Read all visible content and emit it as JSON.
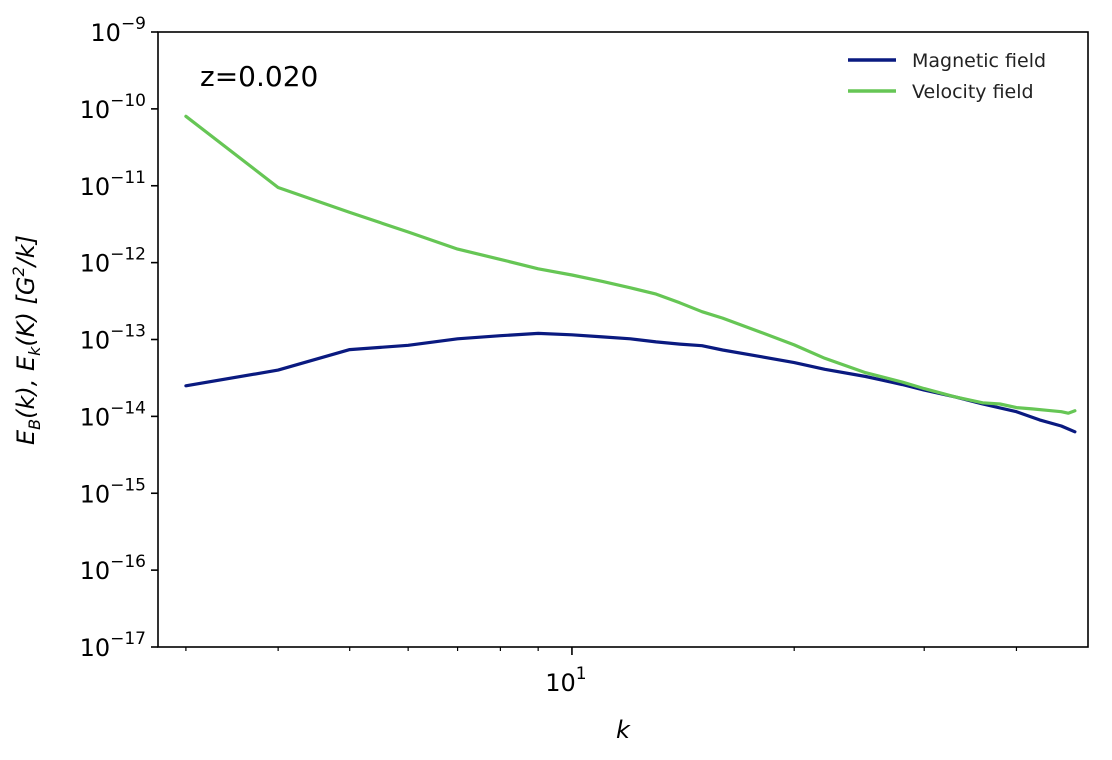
{
  "chart_data": {
    "type": "line",
    "xscale": "log",
    "yscale": "log",
    "xlim": [
      2.75,
      50
    ],
    "ylim": [
      1e-17,
      1e-09
    ],
    "xlabel": "k",
    "ylabel_main": "E",
    "ylabel_sub1": "B",
    "ylabel_mid1": "(k), ",
    "ylabel_sub2": "k",
    "ylabel_mid2": "(K) [G",
    "ylabel_sup": "2",
    "ylabel_end": "/k]",
    "x_ticks_major": [
      {
        "value": 10,
        "base": "10",
        "exp": "1"
      }
    ],
    "x_ticks_minor": [
      3,
      4,
      5,
      6,
      7,
      8,
      9,
      20,
      30,
      40
    ],
    "y_ticks": [
      {
        "value": 1e-09,
        "base": "10",
        "exp": "−9"
      },
      {
        "value": 1e-10,
        "base": "10",
        "exp": "−10"
      },
      {
        "value": 1e-11,
        "base": "10",
        "exp": "−11"
      },
      {
        "value": 1e-12,
        "base": "10",
        "exp": "−12"
      },
      {
        "value": 1e-13,
        "base": "10",
        "exp": "−13"
      },
      {
        "value": 1e-14,
        "base": "10",
        "exp": "−14"
      },
      {
        "value": 1e-15,
        "base": "10",
        "exp": "−15"
      },
      {
        "value": 1e-16,
        "base": "10",
        "exp": "−16"
      },
      {
        "value": 1e-17,
        "base": "10",
        "exp": "−17"
      }
    ],
    "annotation": "z=0.020",
    "legend_position": "top-right",
    "grid": false,
    "series": [
      {
        "name": "Magnetic field",
        "color": "#0a1a80",
        "x": [
          3,
          4,
          5,
          6,
          7,
          8,
          9,
          10,
          11,
          12,
          13,
          14,
          15,
          16,
          18,
          20,
          22,
          25,
          28,
          30,
          33,
          36,
          40,
          43,
          46,
          48
        ],
        "y": [
          2.5e-14,
          4e-14,
          7.4e-14,
          8.4e-14,
          1.02e-13,
          1.12e-13,
          1.2e-13,
          1.15e-13,
          1.08e-13,
          1.02e-13,
          9.3e-14,
          8.7e-14,
          8.3e-14,
          7.3e-14,
          6e-14,
          5e-14,
          4.1e-14,
          3.3e-14,
          2.6e-14,
          2.2e-14,
          1.8e-14,
          1.45e-14,
          1.15e-14,
          9e-15,
          7.5e-15,
          6.3e-15
        ]
      },
      {
        "name": "Velocity field",
        "color": "#66c655",
        "x": [
          3,
          4,
          5,
          6,
          7,
          8,
          9,
          10,
          11,
          12,
          13,
          14,
          15,
          16,
          18,
          20,
          22,
          25,
          28,
          30,
          33,
          36,
          38,
          40,
          42,
          44,
          46,
          47,
          48
        ],
        "y": [
          8e-11,
          9.5e-12,
          4.5e-12,
          2.5e-12,
          1.5e-12,
          1.1e-12,
          8.3e-13,
          6.9e-13,
          5.7e-13,
          4.7e-13,
          3.9e-13,
          3e-13,
          2.3e-13,
          1.9e-13,
          1.25e-13,
          8.5e-14,
          5.7e-14,
          3.7e-14,
          2.8e-14,
          2.3e-14,
          1.8e-14,
          1.5e-14,
          1.45e-14,
          1.3e-14,
          1.25e-14,
          1.2e-14,
          1.15e-14,
          1.1e-14,
          1.18e-14
        ]
      }
    ]
  }
}
